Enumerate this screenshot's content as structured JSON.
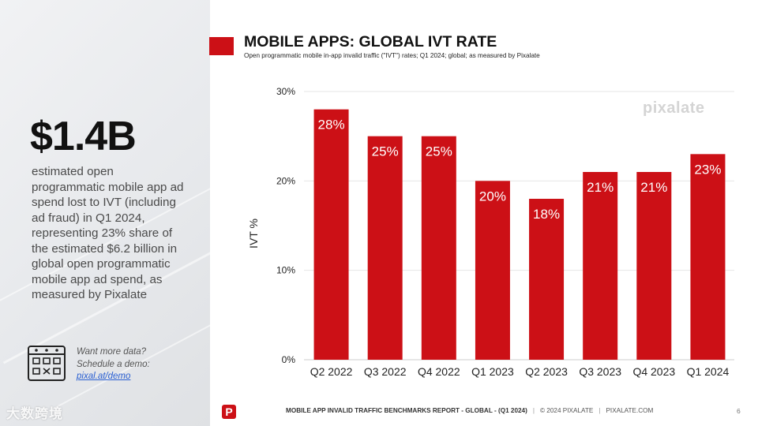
{
  "left_panel": {
    "big_stat": "$1.4B",
    "description": "estimated open programmatic mobile app ad spend lost to IVT (including ad fraud) in Q1 2024, representing 23% share of the estimated $6.2 billion in global open programmatic mobile app ad spend, as measured by Pixalate",
    "demo_line1": "Want more data?",
    "demo_line2": "Schedule a demo:",
    "demo_link": "pixal.at/demo",
    "watermark": "大数跨境"
  },
  "header": {
    "title": "MOBILE APPS: GLOBAL IVT RATE",
    "subtitle": "Open programmatic mobile in-app invalid traffic (\"IVT\") rates; Q1 2024; global; as measured by Pixalate"
  },
  "brand": "pixalate",
  "footer": {
    "logo_letter": "P",
    "report": "MOBILE APP INVALID TRAFFIC BENCHMARKS REPORT - GLOBAL -  (Q1 2024)",
    "copyright": "© 2024 PIXALATE",
    "site": "PIXALATE.COM",
    "page": "6"
  },
  "colors": {
    "accent": "#cc1016",
    "bar": "#cc1016"
  },
  "chart_data": {
    "type": "bar",
    "title": "MOBILE APPS: GLOBAL IVT RATE",
    "categories": [
      "Q2 2022",
      "Q3 2022",
      "Q4 2022",
      "Q1 2023",
      "Q2 2023",
      "Q3 2023",
      "Q4 2023",
      "Q1 2024"
    ],
    "values": [
      28,
      25,
      25,
      20,
      18,
      21,
      21,
      23
    ],
    "data_labels": [
      "28%",
      "25%",
      "25%",
      "20%",
      "18%",
      "21%",
      "21%",
      "23%"
    ],
    "xlabel": "",
    "ylabel": "IVT %",
    "ylim": [
      0,
      30
    ],
    "yticks": [
      0,
      10,
      20,
      30
    ],
    "ytick_labels": [
      "0%",
      "10%",
      "20%",
      "30%"
    ],
    "grid": true,
    "legend": "none"
  }
}
